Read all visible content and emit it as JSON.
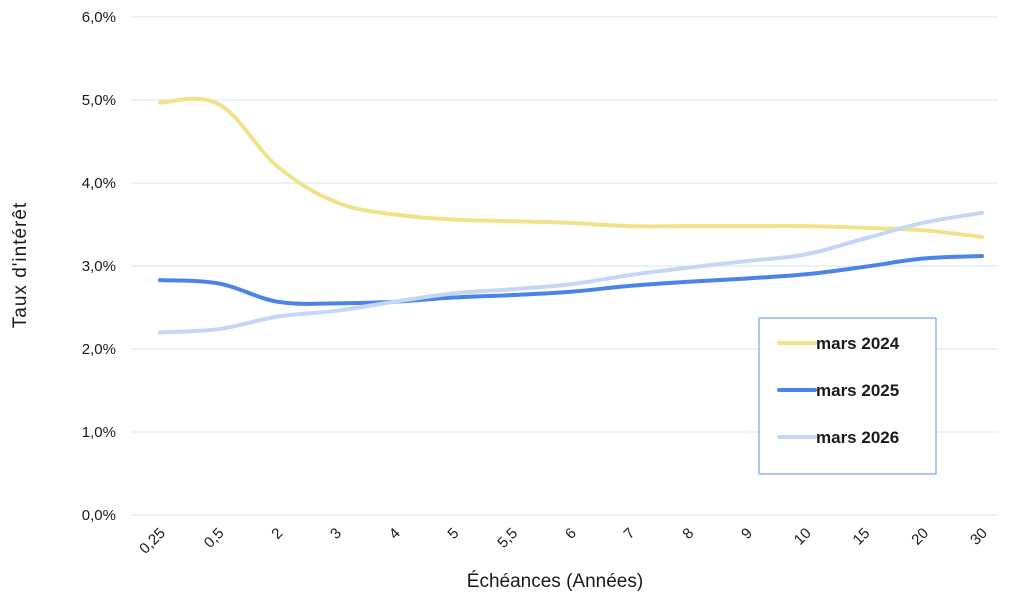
{
  "chart_data": {
    "type": "line",
    "title": "",
    "xlabel": "Échéances (Années)",
    "ylabel": "Taux d'intérêt",
    "categories": [
      "0,25",
      "0,5",
      "2",
      "3",
      "4",
      "5",
      "5,5",
      "6",
      "7",
      "8",
      "9",
      "10",
      "15",
      "20",
      "30"
    ],
    "ylim": [
      0,
      6
    ],
    "yticks": [
      {
        "value": 0,
        "label": "0,0%"
      },
      {
        "value": 1,
        "label": "1,0%"
      },
      {
        "value": 2,
        "label": "2,0%"
      },
      {
        "value": 3,
        "label": "3,0%"
      },
      {
        "value": 4,
        "label": "4,0%"
      },
      {
        "value": 5,
        "label": "5,0%"
      },
      {
        "value": 6,
        "label": "6,0%"
      }
    ],
    "grid": true,
    "legend_position": "bottom-right",
    "series": [
      {
        "name": "mars 2024",
        "color": "#efe38a",
        "values": [
          4.97,
          4.95,
          4.2,
          3.77,
          3.62,
          3.56,
          3.54,
          3.52,
          3.48,
          3.48,
          3.48,
          3.48,
          3.46,
          3.43,
          3.35
        ]
      },
      {
        "name": "mars 2025",
        "color": "#4a84ea",
        "values": [
          2.83,
          2.79,
          2.57,
          2.55,
          2.57,
          2.62,
          2.65,
          2.69,
          2.76,
          2.81,
          2.85,
          2.9,
          2.99,
          3.09,
          3.12
        ]
      },
      {
        "name": "mars 2026",
        "color": "#c5d6f4",
        "values": [
          2.2,
          2.24,
          2.39,
          2.46,
          2.57,
          2.67,
          2.72,
          2.78,
          2.89,
          2.98,
          3.06,
          3.14,
          3.33,
          3.52,
          3.64
        ]
      }
    ]
  }
}
